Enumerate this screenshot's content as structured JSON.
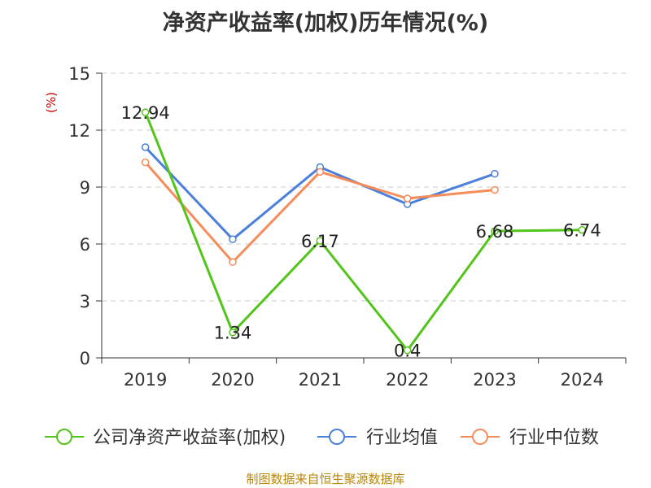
{
  "chart_data": {
    "type": "line",
    "title": "净资产收益率(加权)历年情况(%)",
    "ylabel": "(%)",
    "xlabel": "",
    "categories": [
      "2019",
      "2020",
      "2021",
      "2022",
      "2023",
      "2024"
    ],
    "ylim": [
      0,
      15
    ],
    "yticks": [
      0,
      3,
      6,
      9,
      12,
      15
    ],
    "grid": true,
    "legend_position": "bottom",
    "series": [
      {
        "name": "公司净资产收益率(加权)",
        "color": "#52c41a",
        "values": [
          12.94,
          1.34,
          6.17,
          0.4,
          6.68,
          6.74
        ],
        "labels": [
          "12.94",
          "1.34",
          "6.17",
          "0.4",
          "6.68",
          "6.74"
        ]
      },
      {
        "name": "行业均值",
        "color": "#4a7fdb",
        "values": [
          11.1,
          6.25,
          10.05,
          8.1,
          9.7,
          null
        ]
      },
      {
        "name": "行业中位数",
        "color": "#f58c5a",
        "values": [
          10.3,
          5.05,
          9.8,
          8.4,
          8.85,
          null
        ]
      }
    ]
  },
  "source": "制图数据来自恒生聚源数据库"
}
